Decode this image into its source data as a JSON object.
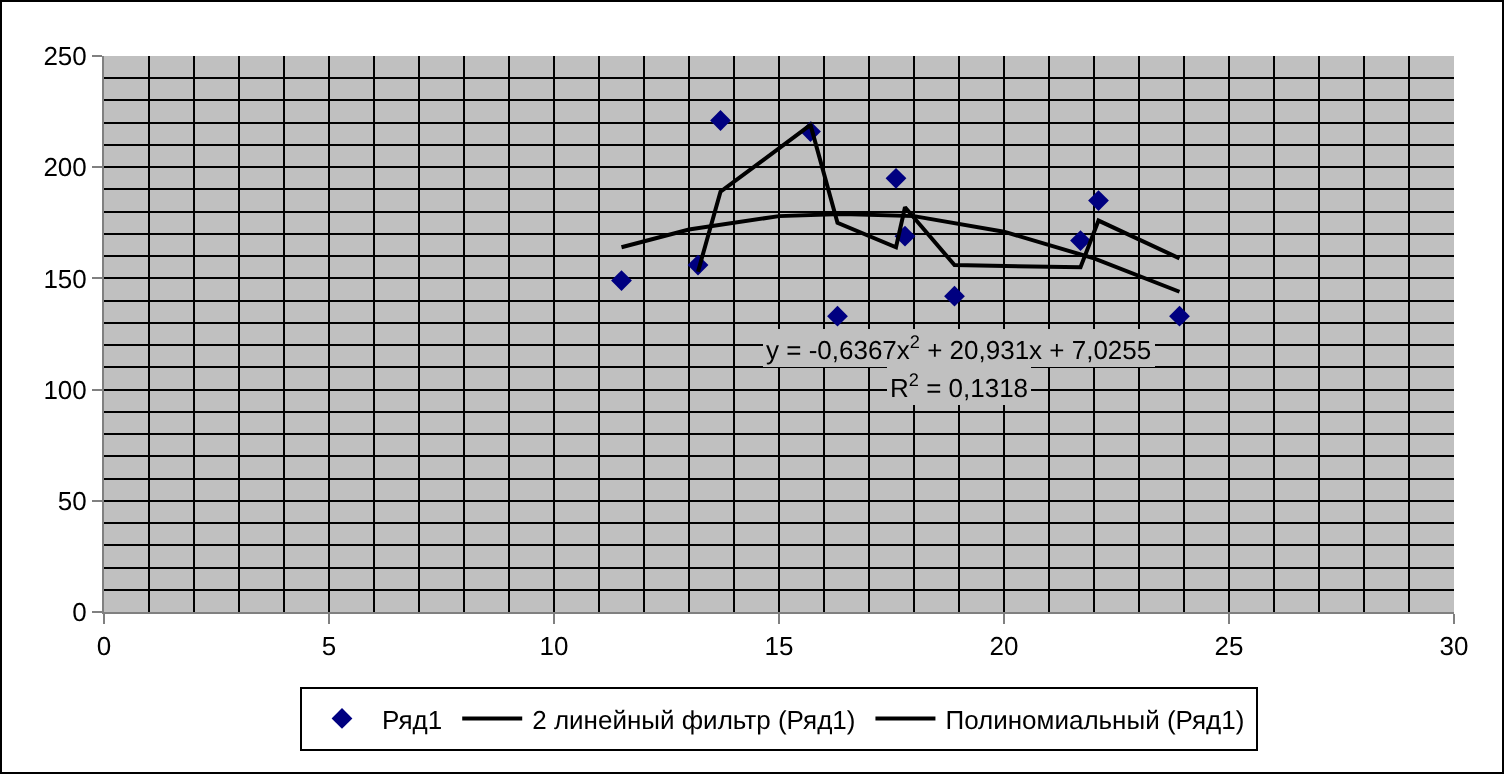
{
  "chart_data": {
    "type": "scatter",
    "legend": "bottom",
    "grid": true,
    "xlim": [
      0,
      30
    ],
    "xticks": [
      0,
      5,
      10,
      15,
      20,
      25,
      30
    ],
    "ylim": [
      0,
      250
    ],
    "yticks": [
      0,
      50,
      100,
      150,
      200,
      250
    ],
    "annotations": [
      "y = -0,6367x$^{2}$ + 20,931x + 7,0255",
      "R$^{2}$ = 0,1318"
    ],
    "series": [
      {
        "name": "Ряд1",
        "marker": "diamond",
        "color": "#000080",
        "x": [
          11.5,
          13.2,
          13.7,
          15.7,
          16.3,
          17.6,
          17.8,
          18.9,
          21.7,
          22.1,
          23.9
        ],
        "values": [
          149,
          156,
          221,
          216,
          133,
          195,
          169,
          142,
          167,
          185,
          133
        ]
      },
      {
        "name": "2 линейный фильтр (Ряд1)",
        "type": "line",
        "marker": "none",
        "line_style": "solid",
        "color": "#000000",
        "x": [
          13.2,
          13.7,
          15.7,
          16.3,
          17.6,
          17.8,
          18.9,
          21.7,
          22.1,
          23.9
        ],
        "values": [
          153,
          189,
          219,
          175,
          164,
          182,
          156,
          155,
          176,
          159
        ]
      },
      {
        "name": "Полиномиальный (Ряд1)",
        "type": "line",
        "marker": "none",
        "line_style": "solid",
        "color": "#000000",
        "x": [
          11.5,
          13,
          15,
          16.4,
          18,
          20,
          22,
          23.9
        ],
        "values": [
          164,
          172,
          178,
          179,
          178,
          171,
          159,
          144
        ]
      }
    ]
  }
}
